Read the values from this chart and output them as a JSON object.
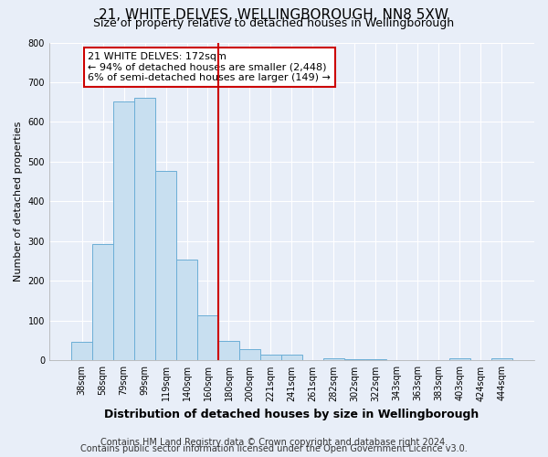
{
  "title": "21, WHITE DELVES, WELLINGBOROUGH, NN8 5XW",
  "subtitle": "Size of property relative to detached houses in Wellingborough",
  "xlabel": "Distribution of detached houses by size in Wellingborough",
  "ylabel": "Number of detached properties",
  "bin_labels": [
    "38sqm",
    "58sqm",
    "79sqm",
    "99sqm",
    "119sqm",
    "140sqm",
    "160sqm",
    "180sqm",
    "200sqm",
    "221sqm",
    "241sqm",
    "261sqm",
    "282sqm",
    "302sqm",
    "322sqm",
    "343sqm",
    "363sqm",
    "383sqm",
    "403sqm",
    "424sqm",
    "444sqm"
  ],
  "bar_heights": [
    48,
    293,
    651,
    660,
    478,
    253,
    114,
    49,
    28,
    14,
    14,
    0,
    6,
    4,
    4,
    0,
    0,
    0,
    6,
    0,
    6
  ],
  "bar_color": "#c8dff0",
  "bar_edge_color": "#6baed6",
  "vline_x_index": 7,
  "vline_color": "#cc0000",
  "annotation_line1": "21 WHITE DELVES: 172sqm",
  "annotation_line2": "← 94% of detached houses are smaller (2,448)",
  "annotation_line3": "6% of semi-detached houses are larger (149) →",
  "annotation_box_color": "#ffffff",
  "annotation_box_edge": "#cc0000",
  "footer_line1": "Contains HM Land Registry data © Crown copyright and database right 2024.",
  "footer_line2": "Contains public sector information licensed under the Open Government Licence v3.0.",
  "ylim": [
    0,
    800
  ],
  "background_color": "#e8eef8",
  "plot_background": "#e8eef8",
  "grid_color": "#ffffff",
  "title_fontsize": 11,
  "subtitle_fontsize": 9,
  "xlabel_fontsize": 9,
  "ylabel_fontsize": 8,
  "tick_fontsize": 7,
  "footer_fontsize": 7,
  "annotation_fontsize": 8
}
